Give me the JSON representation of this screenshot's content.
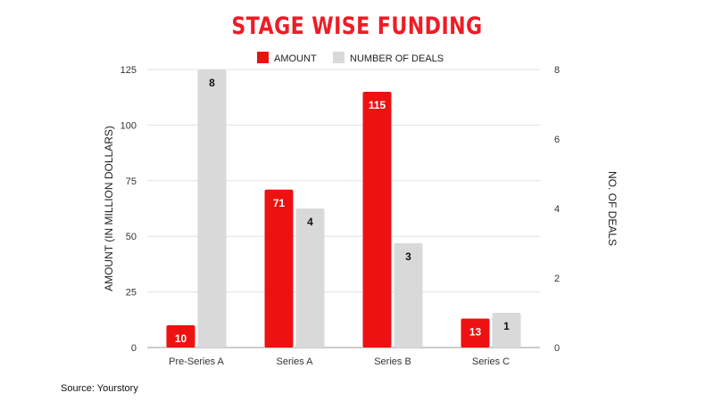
{
  "colors": {
    "title": "#ee1c25",
    "amount": "#ee1111",
    "deals": "#d9d9d9",
    "grid": "#e0e0e0",
    "axis_text": "#333333"
  },
  "chart_data": {
    "type": "bar",
    "title": "STAGE WISE FUNDING",
    "categories": [
      "Pre-Series A",
      "Series A",
      "Series B",
      "Series C"
    ],
    "series": [
      {
        "name": "AMOUNT",
        "axis": "left",
        "values": [
          10,
          71,
          115,
          13
        ]
      },
      {
        "name": "NUMBER OF DEALS",
        "axis": "right",
        "values": [
          8,
          4,
          3,
          1
        ]
      }
    ],
    "ylabel": "AMOUNT (IN MILLION DOLLARS)",
    "y2label": "NO. OF DEALS",
    "ylim": [
      0,
      125
    ],
    "y2lim": [
      0,
      8
    ],
    "yticks": [
      0,
      25,
      50,
      75,
      100,
      125
    ],
    "y2ticks": [
      0,
      2,
      4,
      6,
      8
    ],
    "grid": true,
    "legend_position": "top"
  },
  "source": "Source: Yourstory"
}
